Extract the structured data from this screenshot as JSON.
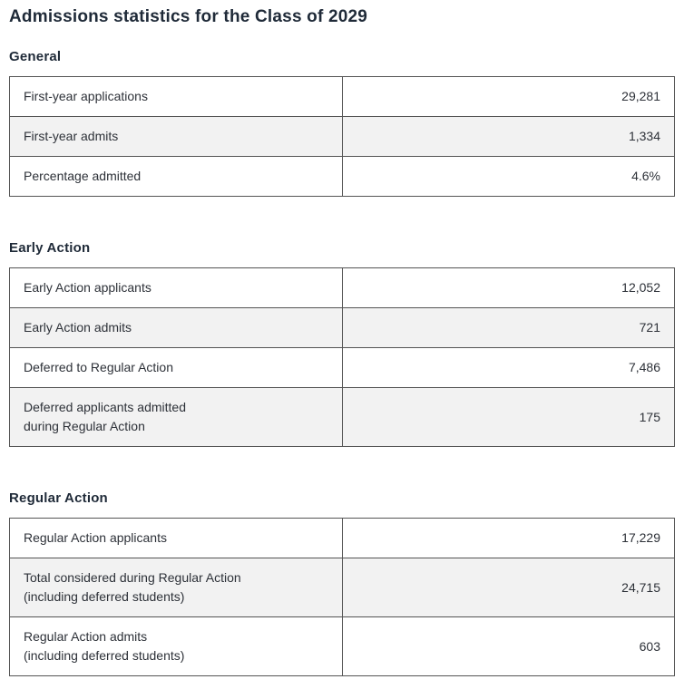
{
  "page": {
    "title": "Admissions statistics for the Class of 2029"
  },
  "colors": {
    "heading_text": "#1f2a38",
    "body_text": "#2d3138",
    "table_border": "#545454",
    "row_shade": "#f2f2f2",
    "background": "#ffffff"
  },
  "sections": [
    {
      "heading": "General",
      "rows": [
        {
          "label": "First-year applications",
          "value": "29,281"
        },
        {
          "label": "First-year admits",
          "value": "1,334"
        },
        {
          "label": "Percentage admitted",
          "value": "4.6%"
        }
      ]
    },
    {
      "heading": "Early Action",
      "rows": [
        {
          "label": "Early Action applicants",
          "value": "12,052"
        },
        {
          "label": "Early Action admits",
          "value": "721"
        },
        {
          "label": "Deferred to Regular Action",
          "value": "7,486"
        },
        {
          "label": "Deferred applicants admitted\nduring Regular Action",
          "value": "175"
        }
      ]
    },
    {
      "heading": "Regular Action",
      "rows": [
        {
          "label": "Regular Action applicants",
          "value": "17,229"
        },
        {
          "label": "Total considered during Regular Action\n(including deferred students)",
          "value": "24,715"
        },
        {
          "label": "Regular Action admits\n(including deferred students)",
          "value": "603"
        }
      ]
    }
  ]
}
